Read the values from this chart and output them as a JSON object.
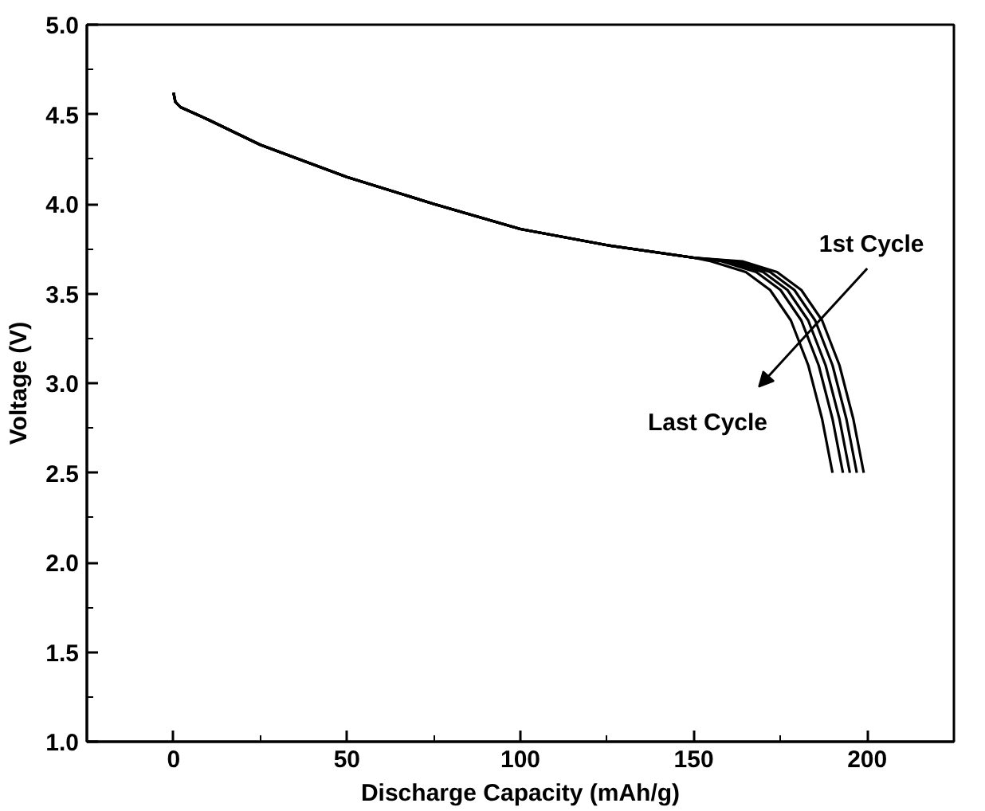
{
  "chart_data": {
    "type": "line",
    "xlabel": "Discharge Capacity (mAh/g)",
    "ylabel": "Voltage (V)",
    "xlim": [
      -25,
      225
    ],
    "ylim": [
      1.0,
      5.0
    ],
    "xticks": [
      {
        "value": -25,
        "label": null
      },
      0,
      {
        "value": 25,
        "label": null
      },
      50,
      {
        "value": 75,
        "label": null
      },
      100,
      {
        "value": 125,
        "label": null
      },
      150,
      {
        "value": 175,
        "label": null
      },
      200,
      {
        "value": 225,
        "label": null
      }
    ],
    "yticks": [
      {
        "value": 1.0,
        "label": "1.0"
      },
      {
        "value": 1.25,
        "label": null
      },
      {
        "value": 1.5,
        "label": "1.5"
      },
      {
        "value": 1.75,
        "label": null
      },
      {
        "value": 2.0,
        "label": "2.0"
      },
      {
        "value": 2.25,
        "label": null
      },
      {
        "value": 2.5,
        "label": "2.5"
      },
      {
        "value": 2.75,
        "label": null
      },
      {
        "value": 3.0,
        "label": "3.0"
      },
      {
        "value": 3.25,
        "label": null
      },
      {
        "value": 3.5,
        "label": "3.5"
      },
      {
        "value": 3.75,
        "label": null
      },
      {
        "value": 4.0,
        "label": "4.0"
      },
      {
        "value": 4.25,
        "label": null
      },
      {
        "value": 4.5,
        "label": "4.5"
      },
      {
        "value": 4.75,
        "label": null
      },
      {
        "value": 5.0,
        "label": "5.0"
      }
    ],
    "grid": false,
    "marker": "none",
    "line_style": "solid",
    "series": [
      {
        "color": "#000000",
        "x": [
          0,
          0.5,
          2,
          10,
          25,
          50,
          75,
          100,
          125,
          150,
          155,
          165,
          172,
          178,
          183,
          187,
          190
        ],
        "values": [
          4.62,
          4.57,
          4.54,
          4.47,
          4.33,
          4.15,
          4.0,
          3.86,
          3.77,
          3.7,
          3.68,
          3.62,
          3.52,
          3.35,
          3.1,
          2.8,
          2.5
        ]
      },
      {
        "color": "#000000",
        "x": [
          0,
          0.5,
          2,
          10,
          25,
          50,
          75,
          100,
          125,
          150,
          158,
          168,
          175,
          181,
          186,
          190,
          193
        ],
        "values": [
          4.62,
          4.57,
          4.54,
          4.47,
          4.33,
          4.15,
          4.0,
          3.86,
          3.77,
          3.7,
          3.68,
          3.62,
          3.52,
          3.35,
          3.1,
          2.8,
          2.5
        ]
      },
      {
        "color": "#000000",
        "x": [
          0,
          0.5,
          2,
          10,
          25,
          50,
          75,
          100,
          125,
          150,
          160,
          170,
          177,
          183,
          188,
          192,
          195
        ],
        "values": [
          4.62,
          4.57,
          4.54,
          4.47,
          4.33,
          4.15,
          4.0,
          3.86,
          3.77,
          3.7,
          3.68,
          3.62,
          3.52,
          3.35,
          3.1,
          2.8,
          2.5
        ]
      },
      {
        "color": "#000000",
        "x": [
          0,
          0.5,
          2,
          10,
          25,
          50,
          75,
          100,
          125,
          150,
          162,
          172,
          179,
          185,
          190,
          194,
          197
        ],
        "values": [
          4.62,
          4.57,
          4.54,
          4.47,
          4.33,
          4.15,
          4.0,
          3.86,
          3.77,
          3.7,
          3.68,
          3.62,
          3.52,
          3.35,
          3.1,
          2.8,
          2.5
        ]
      },
      {
        "color": "#000000",
        "x": [
          0,
          0.5,
          2,
          10,
          25,
          50,
          75,
          100,
          125,
          150,
          164,
          174,
          181,
          187,
          192,
          196,
          199
        ],
        "values": [
          4.62,
          4.57,
          4.54,
          4.47,
          4.33,
          4.15,
          4.0,
          3.86,
          3.77,
          3.7,
          3.68,
          3.62,
          3.52,
          3.35,
          3.1,
          2.8,
          2.5
        ]
      }
    ],
    "annotations": [
      "1st Cycle",
      "Last Cycle"
    ]
  }
}
